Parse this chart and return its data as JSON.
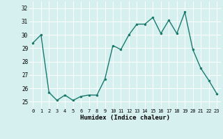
{
  "x": [
    0,
    1,
    2,
    3,
    4,
    5,
    6,
    7,
    8,
    9,
    10,
    11,
    12,
    13,
    14,
    15,
    16,
    17,
    18,
    19,
    20,
    21,
    22,
    23
  ],
  "y": [
    29.4,
    30.0,
    25.7,
    25.1,
    25.5,
    25.1,
    25.4,
    25.5,
    25.5,
    26.7,
    29.2,
    28.9,
    30.0,
    30.8,
    30.8,
    31.3,
    30.1,
    31.1,
    30.1,
    31.7,
    28.9,
    27.5,
    26.6,
    25.6
  ],
  "xlabel": "Humidex (Indice chaleur)",
  "ylim": [
    24.5,
    32.5
  ],
  "yticks": [
    25,
    26,
    27,
    28,
    29,
    30,
    31,
    32
  ],
  "xticks": [
    0,
    1,
    2,
    3,
    4,
    5,
    6,
    7,
    8,
    9,
    10,
    11,
    12,
    13,
    14,
    15,
    16,
    17,
    18,
    19,
    20,
    21,
    22,
    23
  ],
  "line_color": "#1a7a6e",
  "marker_color": "#1a7a6e",
  "bg_color": "#d6f0f0",
  "grid_color": "#b8dada",
  "title": ""
}
